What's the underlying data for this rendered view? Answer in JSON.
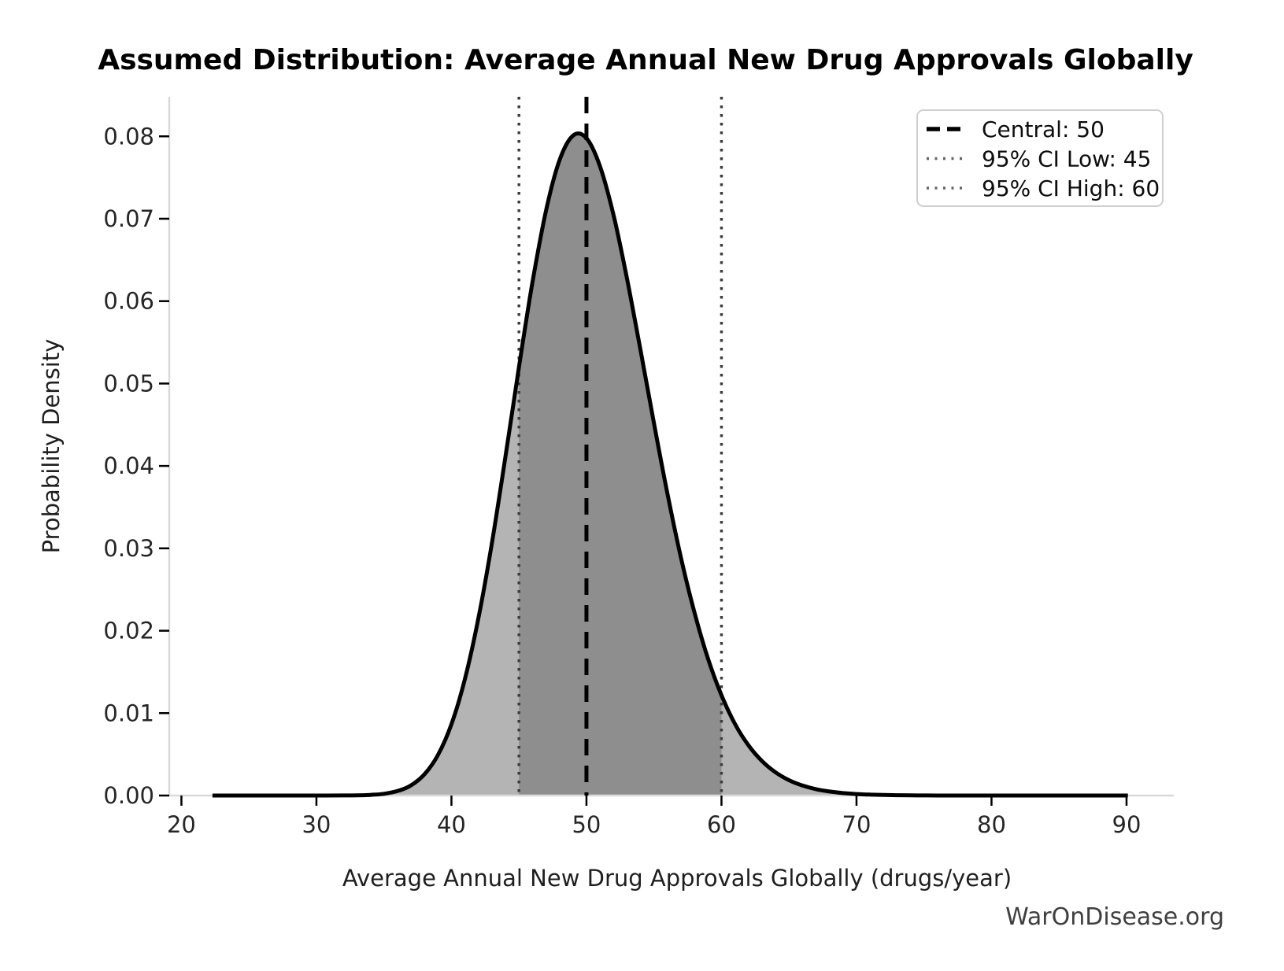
{
  "watermark": "WarOnDisease.org",
  "chart_data": {
    "type": "area",
    "title": "Assumed Distribution: Average Annual New Drug Approvals Globally",
    "xlabel": "Average Annual New Drug Approvals Globally (drugs/year)",
    "ylabel": "Probability Density",
    "xlim": [
      19.1,
      93.5
    ],
    "ylim": [
      0,
      0.0848
    ],
    "x_ticks": [
      20,
      30,
      40,
      50,
      60,
      70,
      80,
      90
    ],
    "y_ticks": [
      0.0,
      0.01,
      0.02,
      0.03,
      0.04,
      0.05,
      0.06,
      0.07,
      0.08
    ],
    "grid": false,
    "distribution": {
      "family": "lognormal",
      "central": 50,
      "ci_low": 45,
      "ci_high": 60,
      "ci_level": "95%",
      "peak_x": 49.4,
      "peak_density": 0.08
    },
    "ci_region": [
      45,
      60
    ],
    "curve": {
      "x": [
        22.3,
        24,
        26,
        28,
        30,
        32,
        33,
        34,
        35,
        36,
        37,
        38,
        39,
        40,
        41,
        42,
        43,
        44,
        45,
        46,
        47,
        48,
        49,
        50,
        51,
        52,
        53,
        54,
        55,
        56,
        57,
        58,
        59,
        60,
        61,
        62,
        63,
        64,
        65,
        66,
        67,
        68,
        69,
        70,
        71,
        72,
        73,
        74,
        75,
        76,
        78,
        80,
        82,
        84,
        86,
        88,
        90.1
      ],
      "y": [
        0,
        0,
        0,
        0,
        0,
        1e-05,
        2e-05,
        8e-05,
        0.00021,
        0.00054,
        0.00123,
        0.00257,
        0.00492,
        0.00865,
        0.01415,
        0.02153,
        0.03066,
        0.0411,
        0.05199,
        0.06227,
        0.07094,
        0.07709,
        0.08008,
        0.07977,
        0.07638,
        0.07048,
        0.06276,
        0.05407,
        0.04519,
        0.0366,
        0.02886,
        0.0222,
        0.01663,
        0.01217,
        0.00869,
        0.00609,
        0.00419,
        0.00282,
        0.00186,
        0.00121,
        0.00077,
        0.00049,
        0.0003,
        0.00018,
        0.00011,
        7e-05,
        4e-05,
        2e-05,
        1e-05,
        0,
        0,
        0,
        0,
        0,
        0,
        0,
        0
      ]
    },
    "vlines": [
      {
        "x": 50,
        "style": "dashed",
        "color": "#000000",
        "label": "Central: 50"
      },
      {
        "x": 45,
        "style": "dotted",
        "color": "#3d3d3d",
        "label": "95% CI Low: 45"
      },
      {
        "x": 60,
        "style": "dotted",
        "color": "#3d3d3d",
        "label": "95% CI High: 60"
      }
    ],
    "legend": {
      "position": "upper right",
      "items": [
        {
          "label": "Central: 50",
          "style": "dashed",
          "color": "#000000"
        },
        {
          "label": "95% CI Low: 45",
          "style": "dotted",
          "color": "#666666"
        },
        {
          "label": "95% CI High: 60",
          "style": "dotted",
          "color": "#666666"
        }
      ]
    },
    "colors": {
      "fill_outer": "#b4b4b4",
      "fill_ci": "#8e8e8e",
      "curve": "#000000",
      "axis": "#d9d9d9",
      "tick": "#000000",
      "tick_text": "#262626",
      "watermark": "#3f3f3f",
      "background": "#ffffff"
    }
  }
}
